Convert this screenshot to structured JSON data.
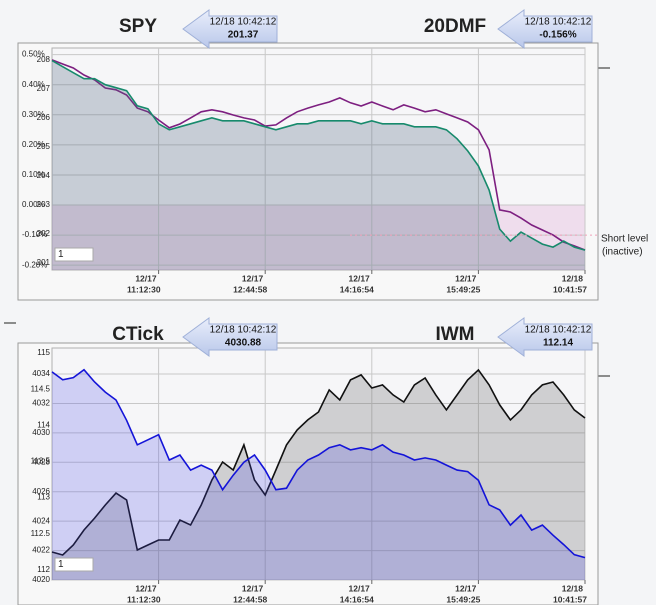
{
  "chart_data": [
    {
      "type": "line",
      "x": [
        0,
        2,
        4,
        6,
        8,
        10,
        12,
        14,
        16,
        18,
        20,
        22,
        24,
        26,
        28,
        30,
        32,
        34,
        36,
        38,
        40,
        42,
        44,
        46,
        48,
        50,
        52,
        54,
        56,
        58,
        60,
        62,
        64,
        66,
        68,
        70,
        72,
        74,
        76,
        78,
        80,
        82,
        84,
        86,
        88,
        90,
        92,
        94,
        96,
        98,
        100
      ],
      "xlim": [
        0,
        100
      ],
      "xticks": [
        {
          "value": 20,
          "label": "12/17",
          "sublabel": "11:12:30"
        },
        {
          "value": 40,
          "label": "12/17",
          "sublabel": "12:44:58"
        },
        {
          "value": 60,
          "label": "12/17",
          "sublabel": "14:16:54"
        },
        {
          "value": 80,
          "label": "12/17",
          "sublabel": "15:49:25"
        },
        {
          "value": 100,
          "label": "12/18",
          "sublabel": "10:41:57"
        }
      ],
      "ylim": [
        200.76,
        208.41
      ],
      "yticks": [
        208,
        207,
        206,
        205,
        204,
        203,
        202,
        201
      ],
      "y2lim": [
        -0.216,
        0.522
      ],
      "y2ticks": [
        {
          "value": 0.5,
          "label": "0.50%"
        },
        {
          "value": 0.4,
          "label": "0.40%"
        },
        {
          "value": 0.3,
          "label": "0.30%"
        },
        {
          "value": 0.2,
          "label": "0.20%"
        },
        {
          "value": 0.1,
          "label": "0.10%"
        },
        {
          "value": 0.0,
          "label": "0.00%"
        },
        {
          "value": -0.1,
          "label": "-0.10%"
        },
        {
          "value": -0.2,
          "label": "-0.20%"
        }
      ],
      "grid": true,
      "range_input": 1,
      "short_level": {
        "value": -0.1,
        "label": "Short level",
        "note": "(inactive)"
      },
      "series": [
        {
          "name": "SPY",
          "color": "#7d1f80",
          "axis": "y",
          "badge_time": "12/18 10:42:12",
          "badge_value": 201.37,
          "values": [
            208.0,
            207.86,
            207.72,
            207.48,
            207.31,
            207.03,
            206.97,
            206.79,
            206.34,
            206.21,
            205.93,
            205.66,
            205.79,
            206.0,
            206.21,
            206.28,
            206.21,
            206.1,
            206.0,
            205.93,
            205.72,
            205.76,
            206.0,
            206.21,
            206.34,
            206.45,
            206.55,
            206.69,
            206.52,
            206.41,
            206.55,
            206.41,
            206.28,
            206.45,
            206.34,
            206.21,
            206.28,
            206.14,
            206.0,
            205.86,
            205.59,
            204.9,
            202.83,
            202.76,
            202.55,
            202.31,
            202.14,
            201.97,
            201.72,
            201.59,
            201.45
          ]
        },
        {
          "name": "20DMF",
          "color": "#178a6c",
          "axis": "y2",
          "fill": "rgba(80,100,125,0.28)",
          "badge_time": "12/18 10:42:12",
          "badge_value": {
            "value": -0.156,
            "label": "-0.156%"
          },
          "values": [
            0.48,
            0.46,
            0.44,
            0.42,
            0.42,
            0.4,
            0.39,
            0.38,
            0.33,
            0.32,
            0.27,
            0.25,
            0.26,
            0.27,
            0.28,
            0.29,
            0.28,
            0.28,
            0.28,
            0.27,
            0.26,
            0.25,
            0.26,
            0.27,
            0.27,
            0.28,
            0.28,
            0.28,
            0.28,
            0.27,
            0.28,
            0.27,
            0.27,
            0.27,
            0.26,
            0.26,
            0.26,
            0.25,
            0.22,
            0.18,
            0.13,
            0.05,
            -0.08,
            -0.12,
            -0.09,
            -0.11,
            -0.13,
            -0.14,
            -0.12,
            -0.14,
            -0.15
          ]
        }
      ]
    },
    {
      "type": "line",
      "x": [
        0,
        2,
        4,
        6,
        8,
        10,
        12,
        14,
        16,
        18,
        20,
        22,
        24,
        26,
        28,
        30,
        32,
        34,
        36,
        38,
        40,
        42,
        44,
        46,
        48,
        50,
        52,
        54,
        56,
        58,
        60,
        62,
        64,
        66,
        68,
        70,
        72,
        74,
        76,
        78,
        80,
        82,
        84,
        86,
        88,
        90,
        92,
        94,
        96,
        98,
        100
      ],
      "xlim": [
        0,
        100
      ],
      "xticks": [
        {
          "value": 20,
          "label": "12/17",
          "sublabel": "11:12:30"
        },
        {
          "value": 40,
          "label": "12/17",
          "sublabel": "12:44:58"
        },
        {
          "value": 60,
          "label": "12/17",
          "sublabel": "14:16:54"
        },
        {
          "value": 80,
          "label": "12/17",
          "sublabel": "15:49:25"
        },
        {
          "value": 100,
          "label": "12/18",
          "sublabel": "10:41:57"
        }
      ],
      "ylim": [
        4020,
        4035.77
      ],
      "yticks": [
        4034,
        4032,
        4030,
        4028,
        4026,
        4024,
        4022,
        4020
      ],
      "y2lim": [
        111.86,
        115.07
      ],
      "y2ticks": [
        115,
        114.5,
        114,
        113.5,
        113,
        112.5,
        112
      ],
      "grid": true,
      "range_input": 1,
      "series": [
        {
          "name": "CTick",
          "color": "#111111",
          "axis": "y",
          "fill": "rgba(90,90,90,0.25)",
          "badge_time": "12/18 10:42:12",
          "badge_value": 4030.88,
          "values": [
            4021.9,
            4021.7,
            4022.38,
            4023.4,
            4024.21,
            4025.1,
            4025.91,
            4025.44,
            4022.04,
            4022.38,
            4022.72,
            4022.72,
            4024.08,
            4023.74,
            4025.1,
            4026.8,
            4028.02,
            4027.48,
            4029.18,
            4026.8,
            4025.78,
            4027.48,
            4029.18,
            4030.2,
            4030.88,
            4031.42,
            4032.92,
            4032.24,
            4033.6,
            4033.94,
            4033.05,
            4033.26,
            4032.58,
            4032.1,
            4033.26,
            4033.73,
            4032.58,
            4031.56,
            4032.58,
            4033.6,
            4034.28,
            4033.26,
            4031.9,
            4030.88,
            4031.56,
            4032.58,
            4033.26,
            4033.46,
            4032.58,
            4031.56,
            4031.01
          ]
        },
        {
          "name": "IWM",
          "color": "#1414d8",
          "axis": "y2",
          "fill": "rgba(70,70,230,0.22)",
          "badge_time": "12/18 10:42:12",
          "badge_value": 112.14,
          "values": [
            114.74,
            114.63,
            114.66,
            114.77,
            114.6,
            114.46,
            114.35,
            114.07,
            113.73,
            113.8,
            113.87,
            113.52,
            113.59,
            113.38,
            113.45,
            113.38,
            113.11,
            113.31,
            113.49,
            113.59,
            113.38,
            113.11,
            113.13,
            113.38,
            113.52,
            113.59,
            113.69,
            113.73,
            113.66,
            113.69,
            113.66,
            113.73,
            113.63,
            113.59,
            113.52,
            113.55,
            113.52,
            113.45,
            113.38,
            113.36,
            113.24,
            112.9,
            112.83,
            112.62,
            112.76,
            112.55,
            112.62,
            112.48,
            112.35,
            112.21,
            112.17
          ]
        }
      ]
    }
  ]
}
